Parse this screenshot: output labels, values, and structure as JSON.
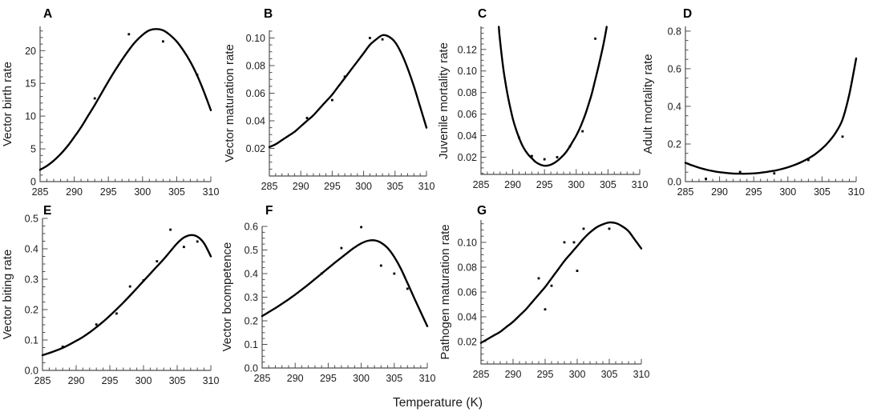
{
  "figure": {
    "xlabel": "Temperature (K)",
    "colors": {
      "curve": "#000000",
      "axis_line": "#4f4f4f",
      "tick_label": "#1c1c1c",
      "point": "#000000",
      "background": "#ffffff"
    }
  },
  "chart_data": [
    {
      "panel": "A",
      "type": "line",
      "ylabel": "Vector birth rate",
      "xlim": [
        285,
        310
      ],
      "xticks": [
        285,
        290,
        295,
        300,
        305,
        310
      ],
      "x_minor_step": 1,
      "ylim": [
        0,
        23.7
      ],
      "yticks": [
        0,
        5,
        10,
        15,
        20
      ],
      "y_minor_step": 1,
      "ytick_decimals": 0,
      "curve": [
        [
          285,
          1.8
        ],
        [
          286,
          2.4
        ],
        [
          287,
          3.2
        ],
        [
          288,
          4.2
        ],
        [
          289,
          5.4
        ],
        [
          290,
          6.8
        ],
        [
          291,
          8.3
        ],
        [
          292,
          10.0
        ],
        [
          293,
          11.7
        ],
        [
          294,
          13.5
        ],
        [
          295,
          15.3
        ],
        [
          296,
          17.0
        ],
        [
          297,
          18.6
        ],
        [
          298,
          20.1
        ],
        [
          299,
          21.4
        ],
        [
          300,
          22.4
        ],
        [
          301,
          23.1
        ],
        [
          302,
          23.3
        ],
        [
          303,
          23.1
        ],
        [
          304,
          22.4
        ],
        [
          305,
          21.4
        ],
        [
          306,
          20.0
        ],
        [
          307,
          18.3
        ],
        [
          308,
          16.2
        ],
        [
          309,
          13.7
        ],
        [
          310,
          10.9
        ]
      ],
      "points": [
        [
          293,
          12.7
        ],
        [
          298,
          22.5
        ],
        [
          303,
          21.4
        ],
        [
          308,
          16.3
        ]
      ]
    },
    {
      "panel": "B",
      "type": "line",
      "ylabel": "Vector maturation rate",
      "xlim": [
        285,
        310
      ],
      "xticks": [
        285,
        290,
        295,
        300,
        305,
        310
      ],
      "x_minor_step": 1,
      "ylim": [
        0,
        0.1055
      ],
      "yticks": [
        0.02,
        0.04,
        0.06,
        0.08,
        0.1
      ],
      "y_minor_step": 0.005,
      "ytick_decimals": 2,
      "curve": [
        [
          285,
          0.021
        ],
        [
          286,
          0.023
        ],
        [
          287,
          0.026
        ],
        [
          288,
          0.029
        ],
        [
          289,
          0.032
        ],
        [
          290,
          0.036
        ],
        [
          291,
          0.04
        ],
        [
          292,
          0.044
        ],
        [
          293,
          0.049
        ],
        [
          294,
          0.054
        ],
        [
          295,
          0.059
        ],
        [
          296,
          0.065
        ],
        [
          297,
          0.071
        ],
        [
          298,
          0.077
        ],
        [
          299,
          0.083
        ],
        [
          300,
          0.089
        ],
        [
          301,
          0.095
        ],
        [
          302,
          0.099
        ],
        [
          303,
          0.102
        ],
        [
          304,
          0.101
        ],
        [
          305,
          0.097
        ],
        [
          306,
          0.089
        ],
        [
          307,
          0.078
        ],
        [
          308,
          0.065
        ],
        [
          309,
          0.05
        ],
        [
          310,
          0.035
        ]
      ],
      "points": [
        [
          291,
          0.042
        ],
        [
          295,
          0.055
        ],
        [
          297,
          0.072
        ],
        [
          301,
          0.1
        ],
        [
          303,
          0.099
        ]
      ]
    },
    {
      "panel": "C",
      "type": "line",
      "ylabel": "Juvenile mortality rate",
      "xlim": [
        285,
        310
      ],
      "xticks": [
        285,
        290,
        295,
        300,
        305,
        310
      ],
      "x_minor_step": 1,
      "ylim": [
        0.004,
        0.1414
      ],
      "yticks": [
        0.02,
        0.04,
        0.06,
        0.08,
        0.1,
        0.12
      ],
      "y_minor_step": 0.005,
      "ytick_decimals": 2,
      "curve": [
        [
          287.8,
          0.141
        ],
        [
          288,
          0.128
        ],
        [
          288.5,
          0.103
        ],
        [
          289,
          0.084
        ],
        [
          289.5,
          0.069
        ],
        [
          290,
          0.056
        ],
        [
          290.5,
          0.046
        ],
        [
          291,
          0.038
        ],
        [
          291.5,
          0.031
        ],
        [
          292,
          0.026
        ],
        [
          292.5,
          0.022
        ],
        [
          293,
          0.019
        ],
        [
          293.5,
          0.016
        ],
        [
          294,
          0.014
        ],
        [
          294.5,
          0.0127
        ],
        [
          295,
          0.012
        ],
        [
          295.5,
          0.0122
        ],
        [
          296,
          0.013
        ],
        [
          296.5,
          0.0145
        ],
        [
          297,
          0.0165
        ],
        [
          297.5,
          0.019
        ],
        [
          298,
          0.022
        ],
        [
          298.5,
          0.0255
        ],
        [
          299,
          0.03
        ],
        [
          299.5,
          0.035
        ],
        [
          300,
          0.04
        ],
        [
          300.5,
          0.046
        ],
        [
          301,
          0.053
        ],
        [
          301.5,
          0.061
        ],
        [
          302,
          0.07
        ],
        [
          302.5,
          0.08
        ],
        [
          303,
          0.092
        ],
        [
          303.5,
          0.104
        ],
        [
          304,
          0.117
        ],
        [
          304.4,
          0.128
        ],
        [
          304.8,
          0.141
        ]
      ],
      "points": [
        [
          291,
          0.038
        ],
        [
          293,
          0.021
        ],
        [
          295,
          0.018
        ],
        [
          297,
          0.02
        ],
        [
          299,
          0.03
        ],
        [
          301,
          0.044
        ],
        [
          303,
          0.13
        ]
      ]
    },
    {
      "panel": "D",
      "type": "line",
      "ylabel": "Adult mortality rate",
      "xlim": [
        285,
        310
      ],
      "xticks": [
        285,
        290,
        295,
        300,
        305,
        310
      ],
      "x_minor_step": 1,
      "ylim": [
        0,
        0.825
      ],
      "yticks": [
        0.0,
        0.2,
        0.4,
        0.6,
        0.8
      ],
      "y_minor_step": 0.05,
      "ytick_decimals": 1,
      "curve": [
        [
          285,
          0.1
        ],
        [
          286,
          0.086
        ],
        [
          287,
          0.074
        ],
        [
          288,
          0.064
        ],
        [
          289,
          0.056
        ],
        [
          290,
          0.05
        ],
        [
          291,
          0.046
        ],
        [
          292,
          0.043
        ],
        [
          293,
          0.042
        ],
        [
          294,
          0.042
        ],
        [
          295,
          0.044
        ],
        [
          296,
          0.047
        ],
        [
          297,
          0.052
        ],
        [
          298,
          0.058
        ],
        [
          299,
          0.066
        ],
        [
          300,
          0.076
        ],
        [
          301,
          0.089
        ],
        [
          302,
          0.104
        ],
        [
          303,
          0.123
        ],
        [
          304,
          0.146
        ],
        [
          305,
          0.175
        ],
        [
          306,
          0.212
        ],
        [
          307,
          0.26
        ],
        [
          308,
          0.33
        ],
        [
          309,
          0.465
        ],
        [
          310,
          0.655
        ]
      ],
      "points": [
        [
          288,
          0.015
        ],
        [
          293,
          0.051
        ],
        [
          298,
          0.044
        ],
        [
          303,
          0.115
        ],
        [
          308,
          0.239
        ]
      ]
    },
    {
      "panel": "E",
      "type": "line",
      "ylabel": "Vector biting rate",
      "xlim": [
        285,
        310
      ],
      "xticks": [
        285,
        290,
        295,
        300,
        305,
        310
      ],
      "x_minor_step": 1,
      "ylim": [
        0,
        0.5
      ],
      "yticks": [
        0.0,
        0.1,
        0.2,
        0.3,
        0.4,
        0.5
      ],
      "y_minor_step": 0.025,
      "ytick_decimals": 1,
      "curve": [
        [
          285,
          0.05
        ],
        [
          286,
          0.057
        ],
        [
          287,
          0.065
        ],
        [
          288,
          0.074
        ],
        [
          289,
          0.085
        ],
        [
          290,
          0.097
        ],
        [
          291,
          0.11
        ],
        [
          292,
          0.125
        ],
        [
          293,
          0.142
        ],
        [
          294,
          0.16
        ],
        [
          295,
          0.18
        ],
        [
          296,
          0.201
        ],
        [
          297,
          0.223
        ],
        [
          298,
          0.246
        ],
        [
          299,
          0.27
        ],
        [
          300,
          0.294
        ],
        [
          301,
          0.318
        ],
        [
          302,
          0.342
        ],
        [
          303,
          0.366
        ],
        [
          304,
          0.392
        ],
        [
          305,
          0.418
        ],
        [
          306,
          0.437
        ],
        [
          307,
          0.445
        ],
        [
          308,
          0.44
        ],
        [
          309,
          0.418
        ],
        [
          310,
          0.375
        ]
      ],
      "points": [
        [
          288,
          0.078
        ],
        [
          293,
          0.151
        ],
        [
          296,
          0.187
        ],
        [
          298,
          0.276
        ],
        [
          300,
          0.296
        ],
        [
          302,
          0.359
        ],
        [
          304,
          0.463
        ],
        [
          306,
          0.406
        ],
        [
          308,
          0.424
        ]
      ]
    },
    {
      "panel": "F",
      "type": "line",
      "ylabel": "Vector bcompetence",
      "xlim": [
        285,
        310
      ],
      "xticks": [
        285,
        290,
        295,
        300,
        305,
        310
      ],
      "x_minor_step": 1,
      "ylim": [
        0,
        0.6
      ],
      "yticks": [
        0.0,
        0.1,
        0.2,
        0.3,
        0.4,
        0.5,
        0.6
      ],
      "y_minor_step": 0.025,
      "ytick_decimals": 1,
      "curve": [
        [
          285,
          0.22
        ],
        [
          286,
          0.237
        ],
        [
          287,
          0.254
        ],
        [
          288,
          0.272
        ],
        [
          289,
          0.291
        ],
        [
          290,
          0.311
        ],
        [
          291,
          0.332
        ],
        [
          292,
          0.354
        ],
        [
          293,
          0.377
        ],
        [
          294,
          0.4
        ],
        [
          295,
          0.423
        ],
        [
          296,
          0.446
        ],
        [
          297,
          0.468
        ],
        [
          298,
          0.49
        ],
        [
          299,
          0.511
        ],
        [
          300,
          0.528
        ],
        [
          301,
          0.539
        ],
        [
          302,
          0.541
        ],
        [
          303,
          0.531
        ],
        [
          304,
          0.508
        ],
        [
          305,
          0.471
        ],
        [
          306,
          0.421
        ],
        [
          307,
          0.36
        ],
        [
          308,
          0.298
        ],
        [
          309,
          0.237
        ],
        [
          310,
          0.177
        ]
      ],
      "points": [
        [
          294,
          0.4
        ],
        [
          297,
          0.508
        ],
        [
          300,
          0.597
        ],
        [
          303,
          0.434
        ],
        [
          305,
          0.4
        ],
        [
          307,
          0.336
        ]
      ]
    },
    {
      "panel": "G",
      "type": "line",
      "ylabel": "Pathogen maturation rate",
      "xlim": [
        285,
        310
      ],
      "xticks": [
        285,
        290,
        295,
        300,
        305,
        310
      ],
      "x_minor_step": 1,
      "ylim": [
        0.002,
        0.118
      ],
      "yticks": [
        0.02,
        0.04,
        0.06,
        0.08,
        0.1
      ],
      "y_minor_step": 0.005,
      "ytick_decimals": 2,
      "curve": [
        [
          285,
          0.019
        ],
        [
          286,
          0.022
        ],
        [
          287,
          0.025
        ],
        [
          288,
          0.028
        ],
        [
          289,
          0.032
        ],
        [
          290,
          0.036
        ],
        [
          291,
          0.041
        ],
        [
          292,
          0.046
        ],
        [
          293,
          0.052
        ],
        [
          294,
          0.058
        ],
        [
          295,
          0.064
        ],
        [
          296,
          0.071
        ],
        [
          297,
          0.078
        ],
        [
          298,
          0.085
        ],
        [
          299,
          0.091
        ],
        [
          300,
          0.097
        ],
        [
          301,
          0.103
        ],
        [
          302,
          0.108
        ],
        [
          303,
          0.112
        ],
        [
          304,
          0.1145
        ],
        [
          305,
          0.116
        ],
        [
          306,
          0.1155
        ],
        [
          307,
          0.113
        ],
        [
          308,
          0.109
        ],
        [
          309,
          0.102
        ],
        [
          310,
          0.095
        ]
      ],
      "points": [
        [
          294,
          0.071
        ],
        [
          295,
          0.046
        ],
        [
          296,
          0.065
        ],
        [
          298,
          0.1
        ],
        [
          299.5,
          0.1
        ],
        [
          300,
          0.077
        ],
        [
          301,
          0.111
        ],
        [
          305,
          0.111
        ]
      ]
    }
  ]
}
